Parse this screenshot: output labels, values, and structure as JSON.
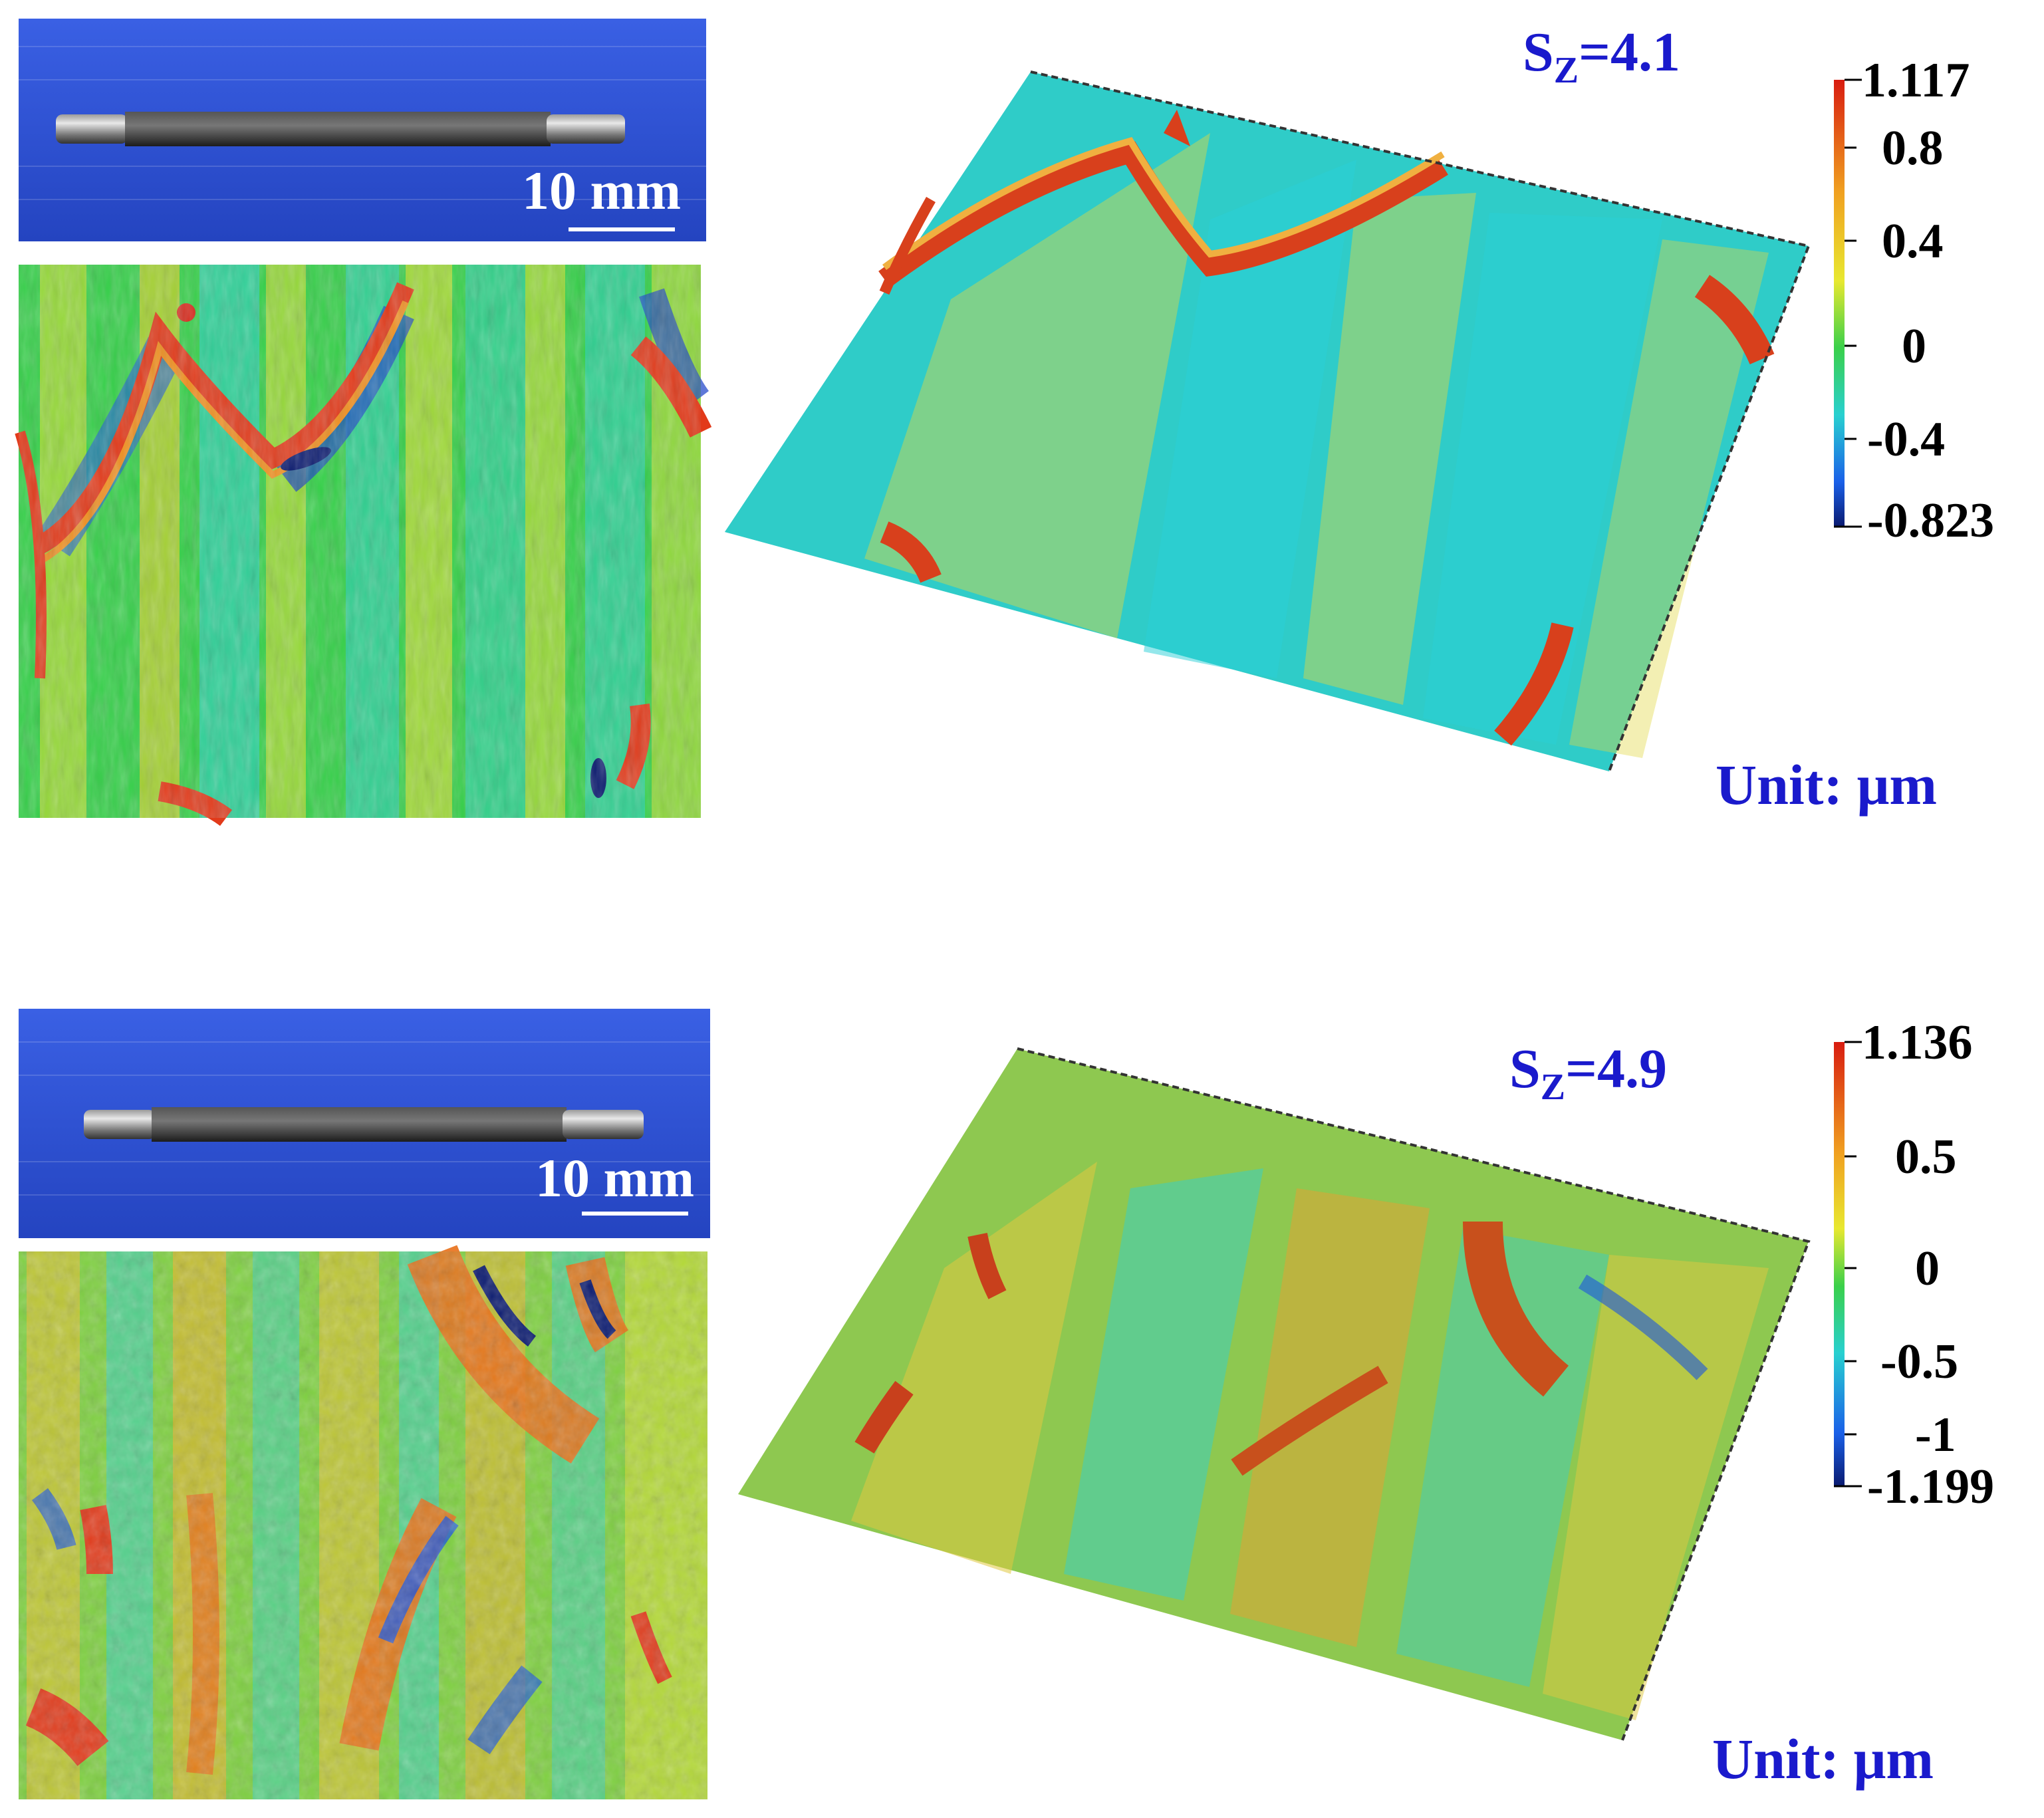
{
  "panels": [
    {
      "id": "top",
      "sz_prefix": "S",
      "sz_sub": "Z",
      "sz_value": "=4.1",
      "unit": "Unit: μm",
      "scale_bar": "10 mm",
      "colorbar_ticks": [
        "1.117",
        "0.8",
        "0.4",
        "0",
        "-0.4",
        "-0.823"
      ]
    },
    {
      "id": "bottom",
      "sz_prefix": "S",
      "sz_sub": "Z",
      "sz_value": "=4.9",
      "unit": "Unit: μm",
      "scale_bar": "10 mm",
      "colorbar_ticks": [
        "1.136",
        "0.5",
        "0",
        "-0.5",
        "-1",
        "-1.199"
      ]
    }
  ],
  "colors": {
    "label_blue": "#1a1acc",
    "photo_blue": "#2f55d8",
    "map_green": "#2fd04a",
    "map_cyan": "#2ad8d8",
    "map_yellow": "#e8e830",
    "map_red": "#e23a1a",
    "map_blue": "#1a55e0"
  }
}
